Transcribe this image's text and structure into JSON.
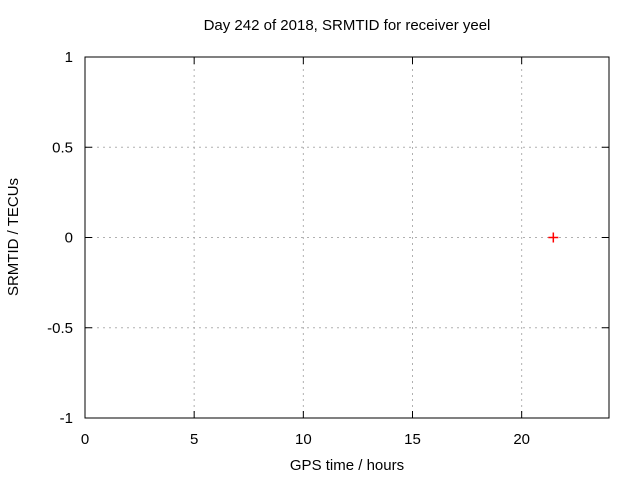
{
  "window": {
    "background": "#ffffff"
  },
  "chart_data": {
    "type": "scatter",
    "title": "Day 242 of 2018, SRMTID for receiver yeel",
    "xlabel": "GPS time / hours",
    "ylabel": "SRMTID / TECUs",
    "xlim": [
      0,
      24
    ],
    "ylim": [
      -1,
      1
    ],
    "xticks": [
      0,
      5,
      10,
      15,
      20
    ],
    "yticks": [
      -1,
      -0.5,
      0,
      0.5,
      1
    ],
    "grid": true,
    "legend": "none",
    "series": [
      {
        "marker": "plus",
        "color": "#ff0000",
        "points": [
          [
            21.45,
            0.0
          ]
        ]
      }
    ],
    "colors": {
      "border": "#000000",
      "grid": "#b0b0b0",
      "text": "#000000"
    }
  }
}
